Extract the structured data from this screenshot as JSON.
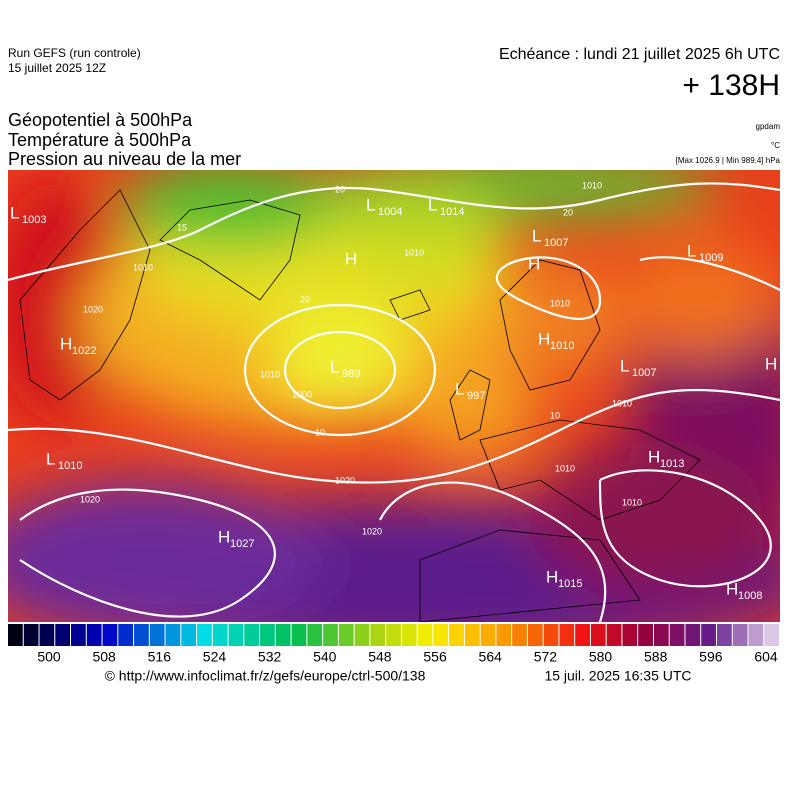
{
  "header": {
    "run": "Run GEFS (run controle)",
    "run_date": "15 juillet 2025 12Z",
    "valid": "Echéance : lundi 21 juillet 2025 6h UTC",
    "lead": "+ 138H",
    "fields": [
      "Géopotentiel à 500hPa",
      "Température à 500hPa",
      "Pression au niveau de la mer"
    ],
    "units": [
      "gpdam",
      "°C",
      "[Max 1026.9 | Min 989.4] hPa"
    ]
  },
  "map": {
    "centers": [
      {
        "letter": "L",
        "value": 1003
      },
      {
        "letter": "L",
        "value": 1004
      },
      {
        "letter": "L",
        "value": 1014
      },
      {
        "letter": "H"
      },
      {
        "letter": "L",
        "value": 1007
      },
      {
        "letter": "L",
        "value": 1009
      },
      {
        "letter": "H"
      },
      {
        "letter": "H",
        "value": 1022
      },
      {
        "letter": "L",
        "value": 989
      },
      {
        "letter": "L",
        "value": 997
      },
      {
        "letter": "H",
        "value": 1010
      },
      {
        "letter": "L",
        "value": 1007
      },
      {
        "letter": "H"
      },
      {
        "letter": "L",
        "value": 1010
      },
      {
        "letter": "H",
        "value": 1013
      },
      {
        "letter": "H",
        "value": 1027
      },
      {
        "letter": "H",
        "value": 1015
      },
      {
        "letter": "H",
        "value": 1008
      }
    ],
    "contour_labels": [
      1010,
      1020,
      15,
      1010,
      1000,
      20,
      20,
      1010,
      20,
      1010,
      1010,
      10,
      1020,
      1020,
      1020,
      1010,
      1010,
      10,
      1010
    ]
  },
  "colorbar": {
    "ticks": [
      500,
      508,
      516,
      524,
      532,
      540,
      548,
      556,
      564,
      572,
      580,
      588,
      596,
      604
    ]
  },
  "footer": {
    "source": "© http://www.infoclimat.fr/z/gefs/europe/ctrl-500/138",
    "generated": "15 juil. 2025 16:35 UTC"
  }
}
